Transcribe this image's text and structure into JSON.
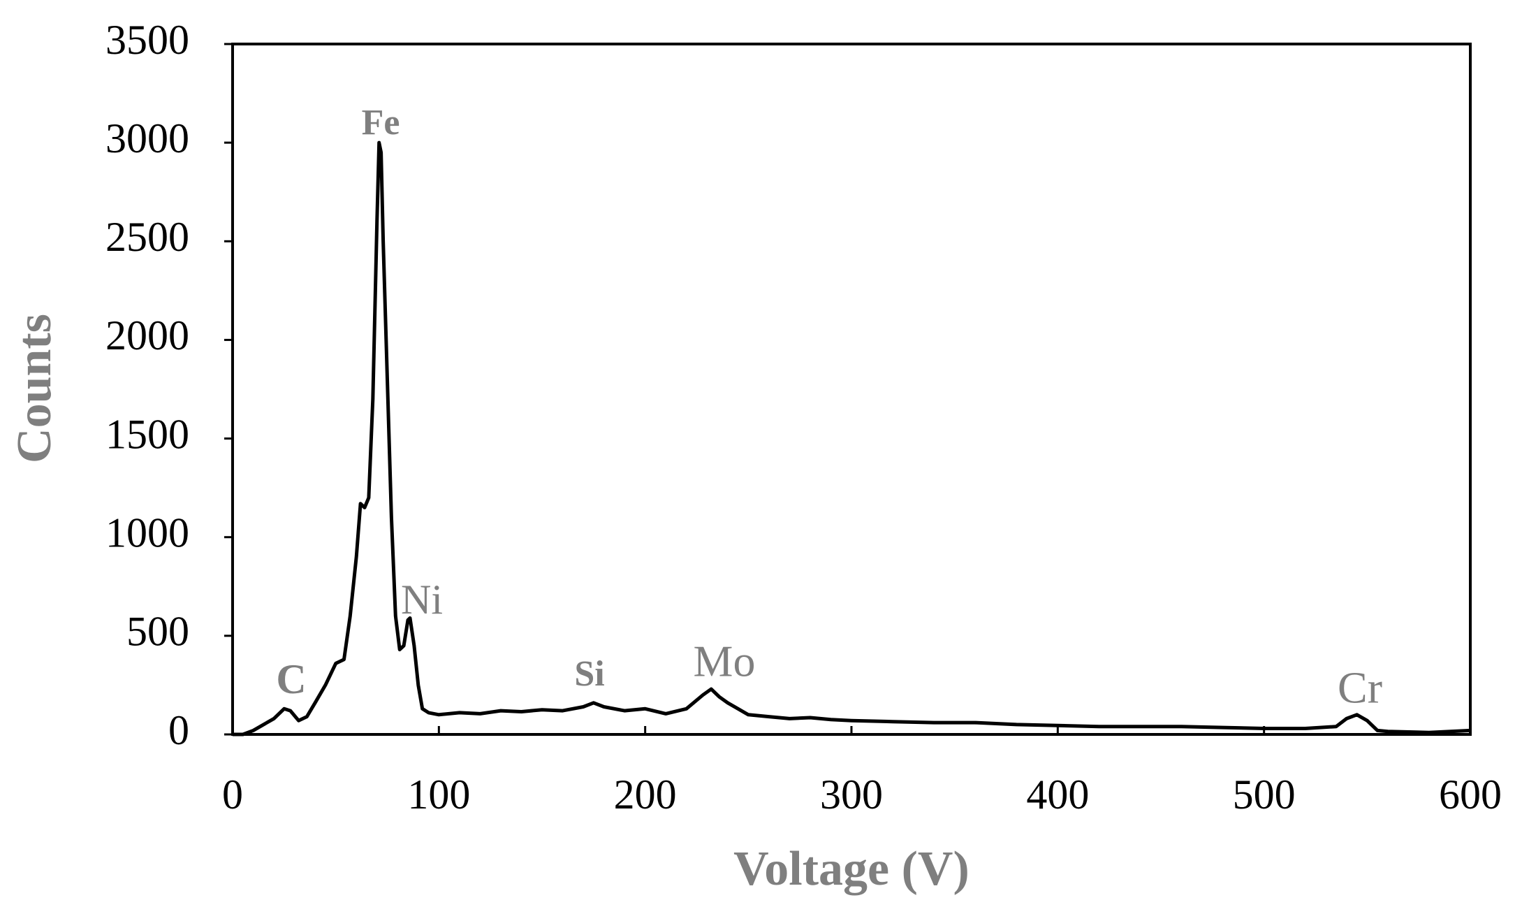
{
  "chart_data": {
    "type": "line",
    "x_label": "Voltage (V)",
    "y_label": "Counts",
    "x": [
      0,
      5,
      10,
      15,
      20,
      25,
      28,
      32,
      36,
      40,
      45,
      50,
      54,
      57,
      60,
      62,
      64,
      66,
      68,
      70,
      71,
      72,
      73,
      75,
      77,
      79,
      81,
      83,
      85,
      86,
      88,
      90,
      92,
      95,
      100,
      110,
      120,
      130,
      140,
      150,
      160,
      170,
      175,
      180,
      190,
      200,
      210,
      220,
      228,
      232,
      236,
      240,
      245,
      250,
      260,
      270,
      280,
      290,
      300,
      320,
      340,
      360,
      380,
      400,
      420,
      440,
      460,
      480,
      500,
      520,
      535,
      540,
      545,
      550,
      555,
      560,
      580,
      600
    ],
    "values": [
      0,
      0,
      20,
      50,
      80,
      130,
      120,
      70,
      90,
      160,
      250,
      360,
      380,
      600,
      900,
      1170,
      1150,
      1200,
      1700,
      2600,
      3000,
      2950,
      2500,
      1800,
      1100,
      600,
      430,
      450,
      580,
      590,
      450,
      250,
      130,
      110,
      100,
      110,
      105,
      120,
      115,
      125,
      120,
      140,
      160,
      140,
      120,
      130,
      105,
      130,
      200,
      230,
      190,
      160,
      130,
      100,
      90,
      80,
      85,
      75,
      70,
      65,
      60,
      60,
      50,
      45,
      40,
      40,
      40,
      35,
      30,
      30,
      40,
      80,
      100,
      70,
      20,
      15,
      10,
      20
    ],
    "color": "#000000",
    "xlim": [
      0,
      600
    ],
    "ylim": [
      0,
      3500
    ],
    "xticks": [
      0,
      100,
      200,
      300,
      400,
      500,
      600
    ],
    "yticks": [
      0,
      500,
      1000,
      1500,
      2000,
      2500,
      3000,
      3500
    ],
    "grid": false,
    "annotations": [
      "C",
      "Fe",
      "Ni",
      "Si",
      "Mo",
      "Cr"
    ]
  }
}
